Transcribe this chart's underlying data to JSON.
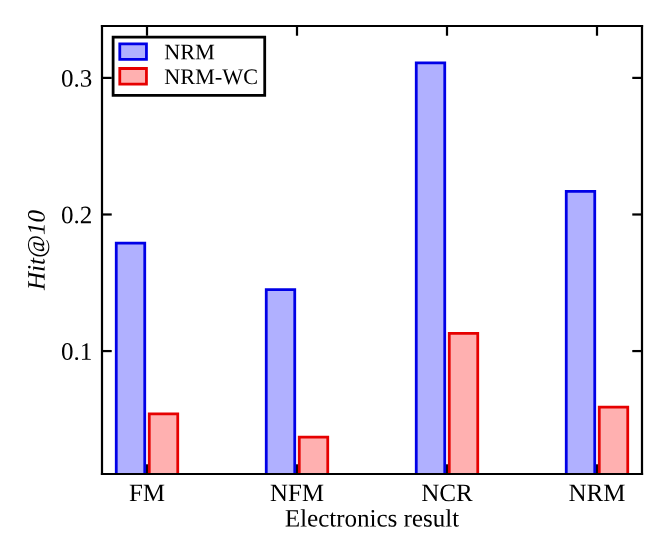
{
  "chart_data": {
    "type": "bar",
    "xlabel": "Electronics result",
    "ylabel": "Hit@10",
    "categories": [
      "FM",
      "NFM",
      "NCR",
      "NRM"
    ],
    "series": [
      {
        "name": "NRM",
        "color": "#b0b0ff",
        "values": [
          0.179,
          0.145,
          0.311,
          0.217
        ]
      },
      {
        "name": "NRM-WC",
        "color": "#ffb0b0",
        "values": [
          0.054,
          0.037,
          0.113,
          0.059
        ]
      }
    ],
    "ylim": [
      0.01,
      0.338
    ],
    "yticks": [
      0.1,
      0.2,
      0.3
    ],
    "grid": false,
    "legend": "top left"
  }
}
